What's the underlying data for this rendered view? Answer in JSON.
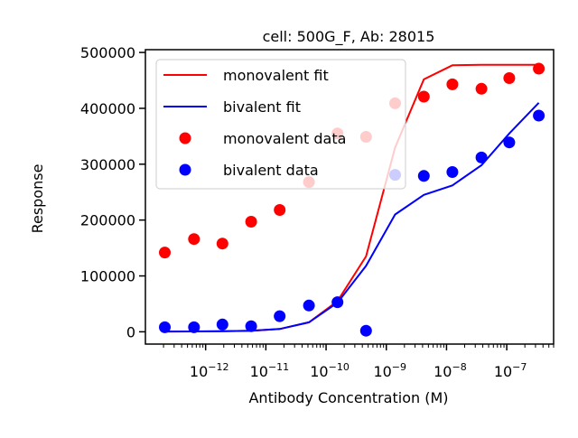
{
  "chart_data": {
    "type": "scatter",
    "title": "cell: 500G_F, Ab: 28015",
    "xlabel": "Antibody Concentration (M)",
    "ylabel": "Response",
    "xscale": "log",
    "xlim": [
      1e-13,
      6e-07
    ],
    "ylim": [
      -22000,
      505000
    ],
    "x_ticks": [
      {
        "value": 1e-12,
        "base": "10",
        "exp": "−12"
      },
      {
        "value": 1e-11,
        "base": "10",
        "exp": "−11"
      },
      {
        "value": 1e-10,
        "base": "10",
        "exp": "−10"
      },
      {
        "value": 1e-09,
        "base": "10",
        "exp": "−9"
      },
      {
        "value": 1e-08,
        "base": "10",
        "exp": "−8"
      },
      {
        "value": 1e-07,
        "base": "10",
        "exp": "−7"
      }
    ],
    "y_ticks": [
      {
        "value": 0,
        "label": "0"
      },
      {
        "value": 100000,
        "label": "100000"
      },
      {
        "value": 200000,
        "label": "200000"
      },
      {
        "value": 300000,
        "label": "300000"
      },
      {
        "value": 400000,
        "label": "400000"
      },
      {
        "value": 500000,
        "label": "500000"
      }
    ],
    "grid": false,
    "legend_position": "upper-left",
    "series": [
      {
        "name": "monovalent fit",
        "kind": "line",
        "color": "#ff0000",
        "x": [
          2.1e-13,
          6.4e-13,
          1.9e-12,
          5.7e-12,
          1.7e-11,
          5.2e-11,
          1.55e-10,
          4.6e-10,
          1.4e-09,
          4.2e-09,
          1.25e-08,
          3.8e-08,
          1.1e-07,
          3.4e-07
        ],
        "y": [
          500,
          700,
          1000,
          2000,
          5000,
          17000,
          55000,
          135000,
          330000,
          452000,
          477000,
          478000,
          478000,
          478000
        ]
      },
      {
        "name": "bivalent fit",
        "kind": "line",
        "color": "#0000ff",
        "x": [
          2.1e-13,
          6.4e-13,
          1.9e-12,
          5.7e-12,
          1.7e-11,
          5.2e-11,
          1.55e-10,
          4.6e-10,
          1.4e-09,
          4.2e-09,
          1.25e-08,
          3.8e-08,
          1.1e-07,
          3.4e-07
        ],
        "y": [
          500,
          700,
          1000,
          2000,
          5000,
          17000,
          52000,
          118000,
          210000,
          245000,
          262000,
          298000,
          355000,
          410000
        ]
      },
      {
        "name": "monovalent data",
        "kind": "scatter",
        "color": "#ff0000",
        "x": [
          2.1e-13,
          6.4e-13,
          1.9e-12,
          5.7e-12,
          1.7e-11,
          5.2e-11,
          1.55e-10,
          4.6e-10,
          1.4e-09,
          4.2e-09,
          1.25e-08,
          3.8e-08,
          1.1e-07,
          3.4e-07
        ],
        "y": [
          142000,
          166000,
          158000,
          197000,
          218000,
          268000,
          355000,
          349000,
          409000,
          421000,
          443000,
          435000,
          454000,
          471000
        ]
      },
      {
        "name": "bivalent data",
        "kind": "scatter",
        "color": "#0000ff",
        "x": [
          2.1e-13,
          6.4e-13,
          1.9e-12,
          5.7e-12,
          1.7e-11,
          5.2e-11,
          1.55e-10,
          4.6e-10,
          1.4e-09,
          4.2e-09,
          1.25e-08,
          3.8e-08,
          1.1e-07,
          3.4e-07
        ],
        "y": [
          8000,
          8000,
          13000,
          10000,
          28000,
          47000,
          53000,
          2000,
          281000,
          279000,
          286000,
          312000,
          339000,
          387000
        ]
      }
    ]
  }
}
